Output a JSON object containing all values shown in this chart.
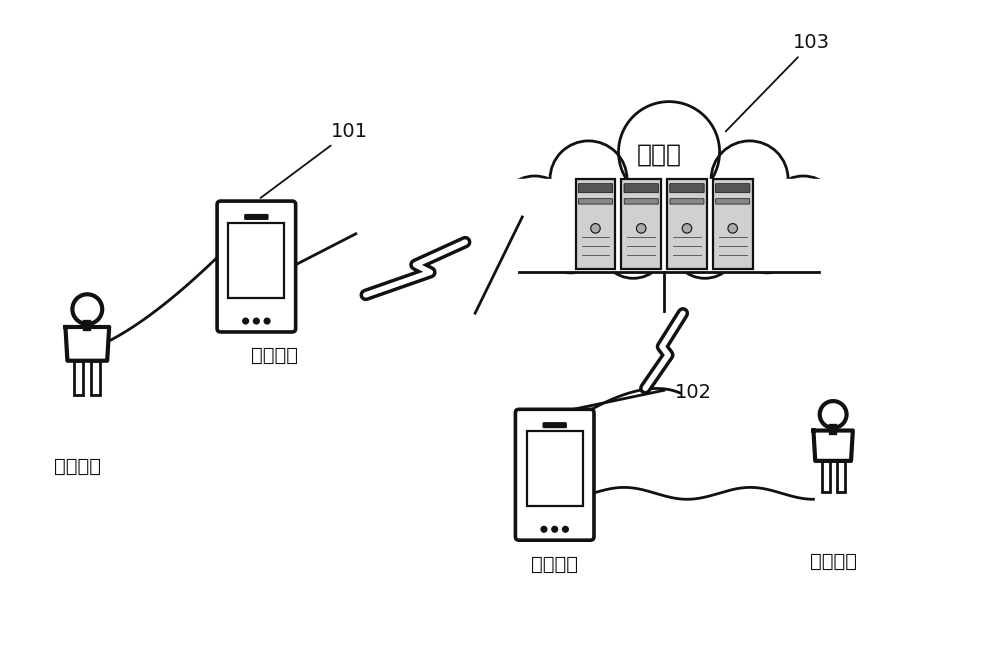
{
  "bg_color": "#ffffff",
  "label_101": "101",
  "label_102": "102",
  "label_103": "103",
  "text_server": "服务器",
  "text_terminal1": "第一终端",
  "text_terminal2": "第二终端",
  "text_user1": "第一用户",
  "text_user2": "目标用户",
  "line_color": "#111111",
  "lw": 2.0
}
